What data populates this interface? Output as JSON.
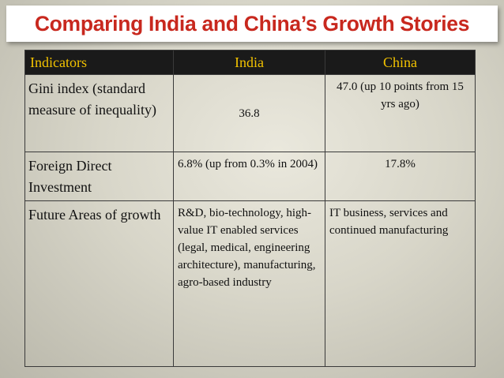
{
  "title": "Comparing India and China’s Growth Stories",
  "table": {
    "headers": [
      "Indicators",
      "India",
      "China"
    ],
    "rows": [
      {
        "indicator": "Gini index (standard measure of inequality)",
        "india": "36.8",
        "china": "47.0 (up 10 points from 15 yrs ago)"
      },
      {
        "indicator": "Foreign Direct Investment",
        "india": "6.8% (up from 0.3% in 2004)",
        "china": "17.8%"
      },
      {
        "indicator": "Future Areas of growth",
        "india": "R&D, bio-technology, high-value IT enabled services (legal, medical, engineering architecture), manufacturing, agro-based industry",
        "china": "IT business, services and continued manufacturing"
      }
    ]
  },
  "colors": {
    "title": "#c8281e",
    "header_bg": "#1a1a1a",
    "header_text": "#f2c200"
  }
}
